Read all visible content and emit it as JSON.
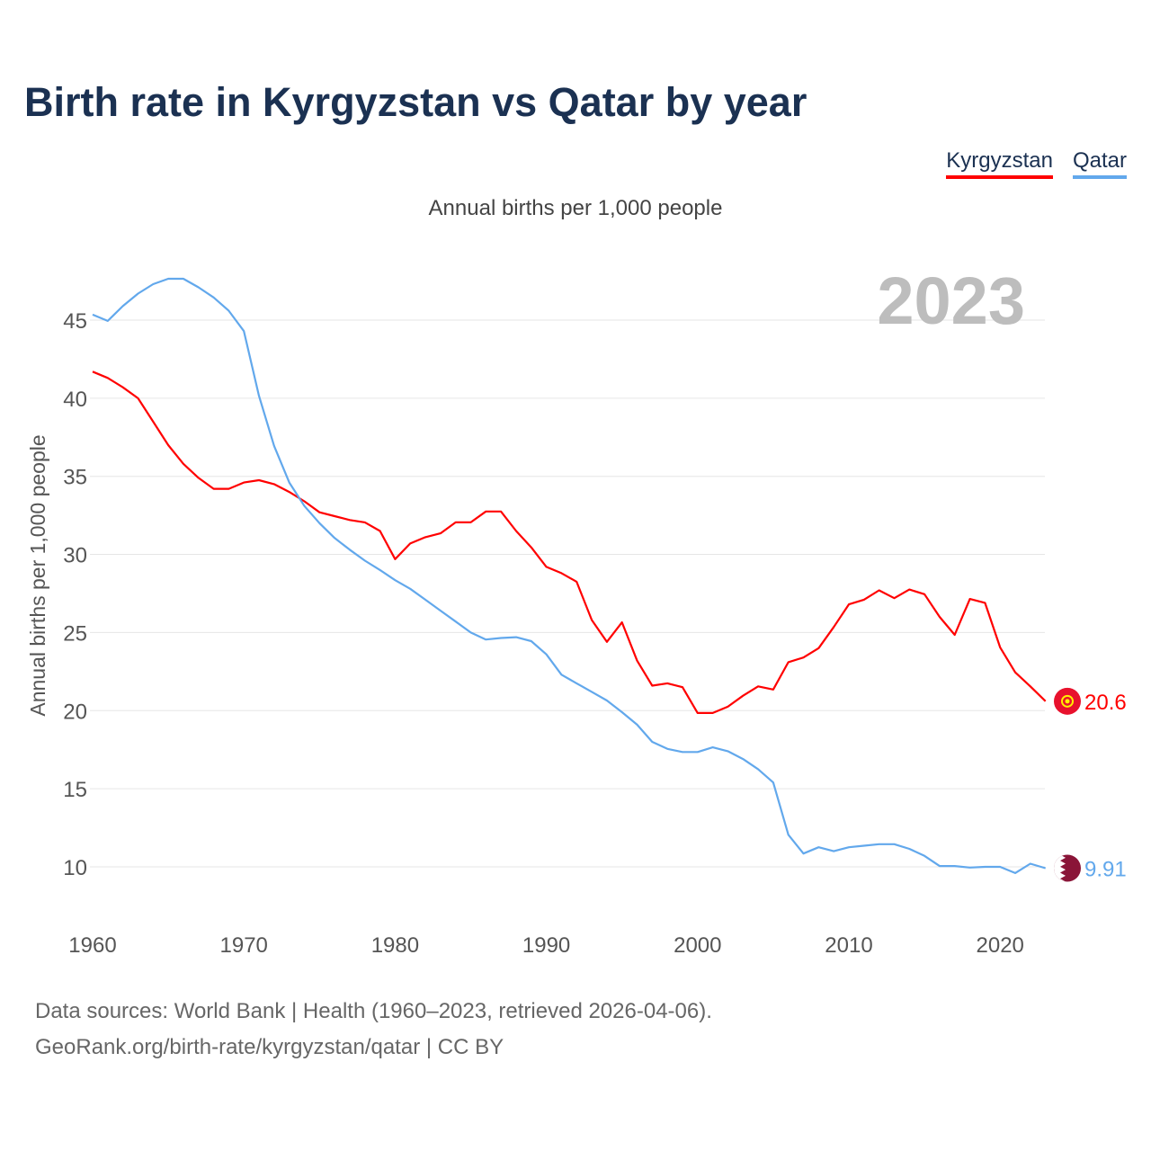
{
  "title": "Birth rate in Kyrgyzstan vs Qatar by year",
  "legend": [
    {
      "label": "Kyrgyzstan",
      "color": "#ff0000"
    },
    {
      "label": "Qatar",
      "color": "#62a8ec"
    }
  ],
  "footer": {
    "line1": "Data sources: World Bank | Health (1960–2023, retrieved 2026-04-06).",
    "line2": "GeoRank.org/birth-rate/kyrgyzstan/qatar | CC BY"
  },
  "chart_data": {
    "type": "line",
    "title": "Birth rate in Kyrgyzstan vs Qatar by year",
    "subtitle": "Annual births per 1,000 people",
    "ylabel": "Annual births per 1,000 people",
    "xlabel": "",
    "year_watermark": "2023",
    "xlim": [
      1960,
      2023
    ],
    "ylim": [
      7,
      48
    ],
    "xticks": [
      "1960",
      "1970",
      "1980",
      "1990",
      "2000",
      "2010",
      "2020"
    ],
    "yticks": [
      "10",
      "15",
      "20",
      "25",
      "30",
      "35",
      "40",
      "45"
    ],
    "grid": true,
    "legend_position": "top-right",
    "x": [
      1960,
      1961,
      1962,
      1963,
      1964,
      1965,
      1966,
      1967,
      1968,
      1969,
      1970,
      1971,
      1972,
      1973,
      1974,
      1975,
      1976,
      1977,
      1978,
      1979,
      1980,
      1981,
      1982,
      1983,
      1984,
      1985,
      1986,
      1987,
      1988,
      1989,
      1990,
      1991,
      1992,
      1993,
      1994,
      1995,
      1996,
      1997,
      1998,
      1999,
      2000,
      2001,
      2002,
      2003,
      2004,
      2005,
      2006,
      2007,
      2008,
      2009,
      2010,
      2011,
      2012,
      2013,
      2014,
      2015,
      2016,
      2017,
      2018,
      2019,
      2020,
      2021,
      2022,
      2023
    ],
    "series": [
      {
        "name": "Kyrgyzstan",
        "color": "#ff0000",
        "end_label": "20.6",
        "values": [
          41.7,
          41.3,
          40.7,
          40.0,
          38.5,
          37.0,
          35.8,
          34.9,
          34.2,
          34.2,
          34.6,
          34.75,
          34.5,
          34.0,
          33.4,
          32.7,
          32.45,
          32.2,
          32.05,
          31.5,
          29.7,
          30.7,
          31.1,
          31.35,
          32.05,
          32.05,
          32.75,
          32.75,
          31.5,
          30.45,
          29.2,
          28.8,
          28.25,
          25.8,
          24.4,
          25.65,
          23.2,
          21.6,
          21.75,
          21.5,
          19.85,
          19.85,
          20.25,
          20.95,
          21.55,
          21.35,
          23.1,
          23.4,
          24.0,
          25.35,
          26.8,
          27.1,
          27.7,
          27.2,
          27.75,
          27.45,
          26.0,
          24.85,
          27.15,
          26.9,
          24.05,
          22.45,
          21.55,
          20.6
        ]
      },
      {
        "name": "Qatar",
        "color": "#62a8ec",
        "end_label": "9.91",
        "values": [
          45.35,
          44.95,
          45.9,
          46.7,
          47.3,
          47.65,
          47.65,
          47.1,
          46.45,
          45.6,
          44.3,
          40.15,
          36.95,
          34.6,
          33.1,
          32.0,
          31.05,
          30.3,
          29.6,
          29.0,
          28.35,
          27.8,
          27.1,
          26.4,
          25.7,
          25.0,
          24.55,
          24.65,
          24.7,
          24.45,
          23.6,
          22.3,
          21.75,
          21.2,
          20.65,
          19.9,
          19.1,
          18.0,
          17.55,
          17.35,
          17.35,
          17.65,
          17.4,
          16.9,
          16.25,
          15.4,
          12.05,
          10.85,
          11.25,
          11.0,
          11.25,
          11.35,
          11.45,
          11.45,
          11.15,
          10.7,
          10.05,
          10.05,
          9.95,
          10.0,
          10.0,
          9.6,
          10.2,
          9.91
        ]
      }
    ]
  }
}
